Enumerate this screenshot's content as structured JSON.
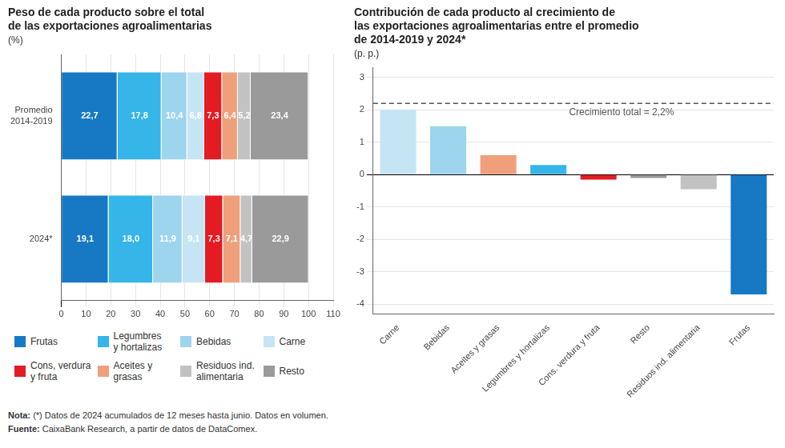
{
  "chart_data": [
    {
      "type": "bar",
      "orientation": "horizontal",
      "stacked": true,
      "title": "Peso de cada producto sobre el total\nde las exportaciones agroalimentarias",
      "subtitle": "(%)",
      "categories": [
        "Promedio\n2014-2019",
        "2024*"
      ],
      "series": [
        {
          "name": "Frutas",
          "color": "#1779C4",
          "values": [
            22.7,
            19.1
          ],
          "value_labels": [
            "22,7",
            "19,1"
          ]
        },
        {
          "name": "Legumbres\ny hortalizas",
          "color": "#35B5E8",
          "values": [
            17.8,
            18.0
          ],
          "value_labels": [
            "17,8",
            "18,0"
          ]
        },
        {
          "name": "Bebidas",
          "color": "#9DD4EE",
          "values": [
            10.4,
            11.9
          ],
          "value_labels": [
            "10,4",
            "11,9"
          ]
        },
        {
          "name": "Carne",
          "color": "#C5E5F5",
          "values": [
            6.8,
            9.1
          ],
          "value_labels": [
            "6,8",
            "9,1"
          ]
        },
        {
          "name": "Cons, verdura\ny fruta",
          "color": "#E31B23",
          "values": [
            7.3,
            7.3
          ],
          "value_labels": [
            "7,3",
            "7,3"
          ]
        },
        {
          "name": "Aceites y\ngrasas",
          "color": "#EFA07A",
          "values": [
            6.4,
            7.1
          ],
          "value_labels": [
            "6,4",
            "7,1"
          ]
        },
        {
          "name": "Residuos ind.\nalimentaria",
          "color": "#C2C2C2",
          "values": [
            5.2,
            4.7
          ],
          "value_labels": [
            "5,2",
            "4,7"
          ]
        },
        {
          "name": "Resto",
          "color": "#9A9A9A",
          "values": [
            23.4,
            22.9
          ],
          "value_labels": [
            "23,4",
            "22,9"
          ]
        }
      ],
      "xlim": [
        0,
        110
      ],
      "xticks": [
        0,
        10,
        20,
        30,
        40,
        50,
        60,
        70,
        80,
        90,
        100,
        110
      ],
      "grid": true,
      "legend": "bottom",
      "data_labels": true
    },
    {
      "type": "bar",
      "title": "Contribución de cada producto al crecimiento de\nlas exportaciones agroalimentarias entre el promedio\nde 2014-2019 y 2024*",
      "subtitle": "(p. p.)",
      "categories": [
        "Carne",
        "Bebidas",
        "Aceites y grasas",
        "Legumbres y hortalizas",
        "Cons. verdura y fruta",
        "Resto",
        "Residuos ind. alimentaria",
        "Frutas"
      ],
      "values": [
        2.0,
        1.5,
        0.6,
        0.3,
        -0.15,
        -0.1,
        -0.45,
        -3.7
      ],
      "colors": [
        "#C5E5F5",
        "#9DD4EE",
        "#EFA07A",
        "#35B5E8",
        "#E31B23",
        "#9A9A9A",
        "#C2C2C2",
        "#1779C4"
      ],
      "ylim": [
        -4.3,
        3.3
      ],
      "yticks": [
        -4,
        -3,
        -2,
        -1,
        0,
        1,
        2,
        3
      ],
      "grid": true,
      "annotations": [
        {
          "y": 2.2,
          "text": "Crecimiento total = 2,2%"
        }
      ]
    }
  ],
  "notes": [
    "Nota: (*) Datos de 2024 acumulados de 12 meses hasta junio. Datos en volumen.",
    "Fuente: CaixaBank Research, a partir de datos de DataComex."
  ]
}
